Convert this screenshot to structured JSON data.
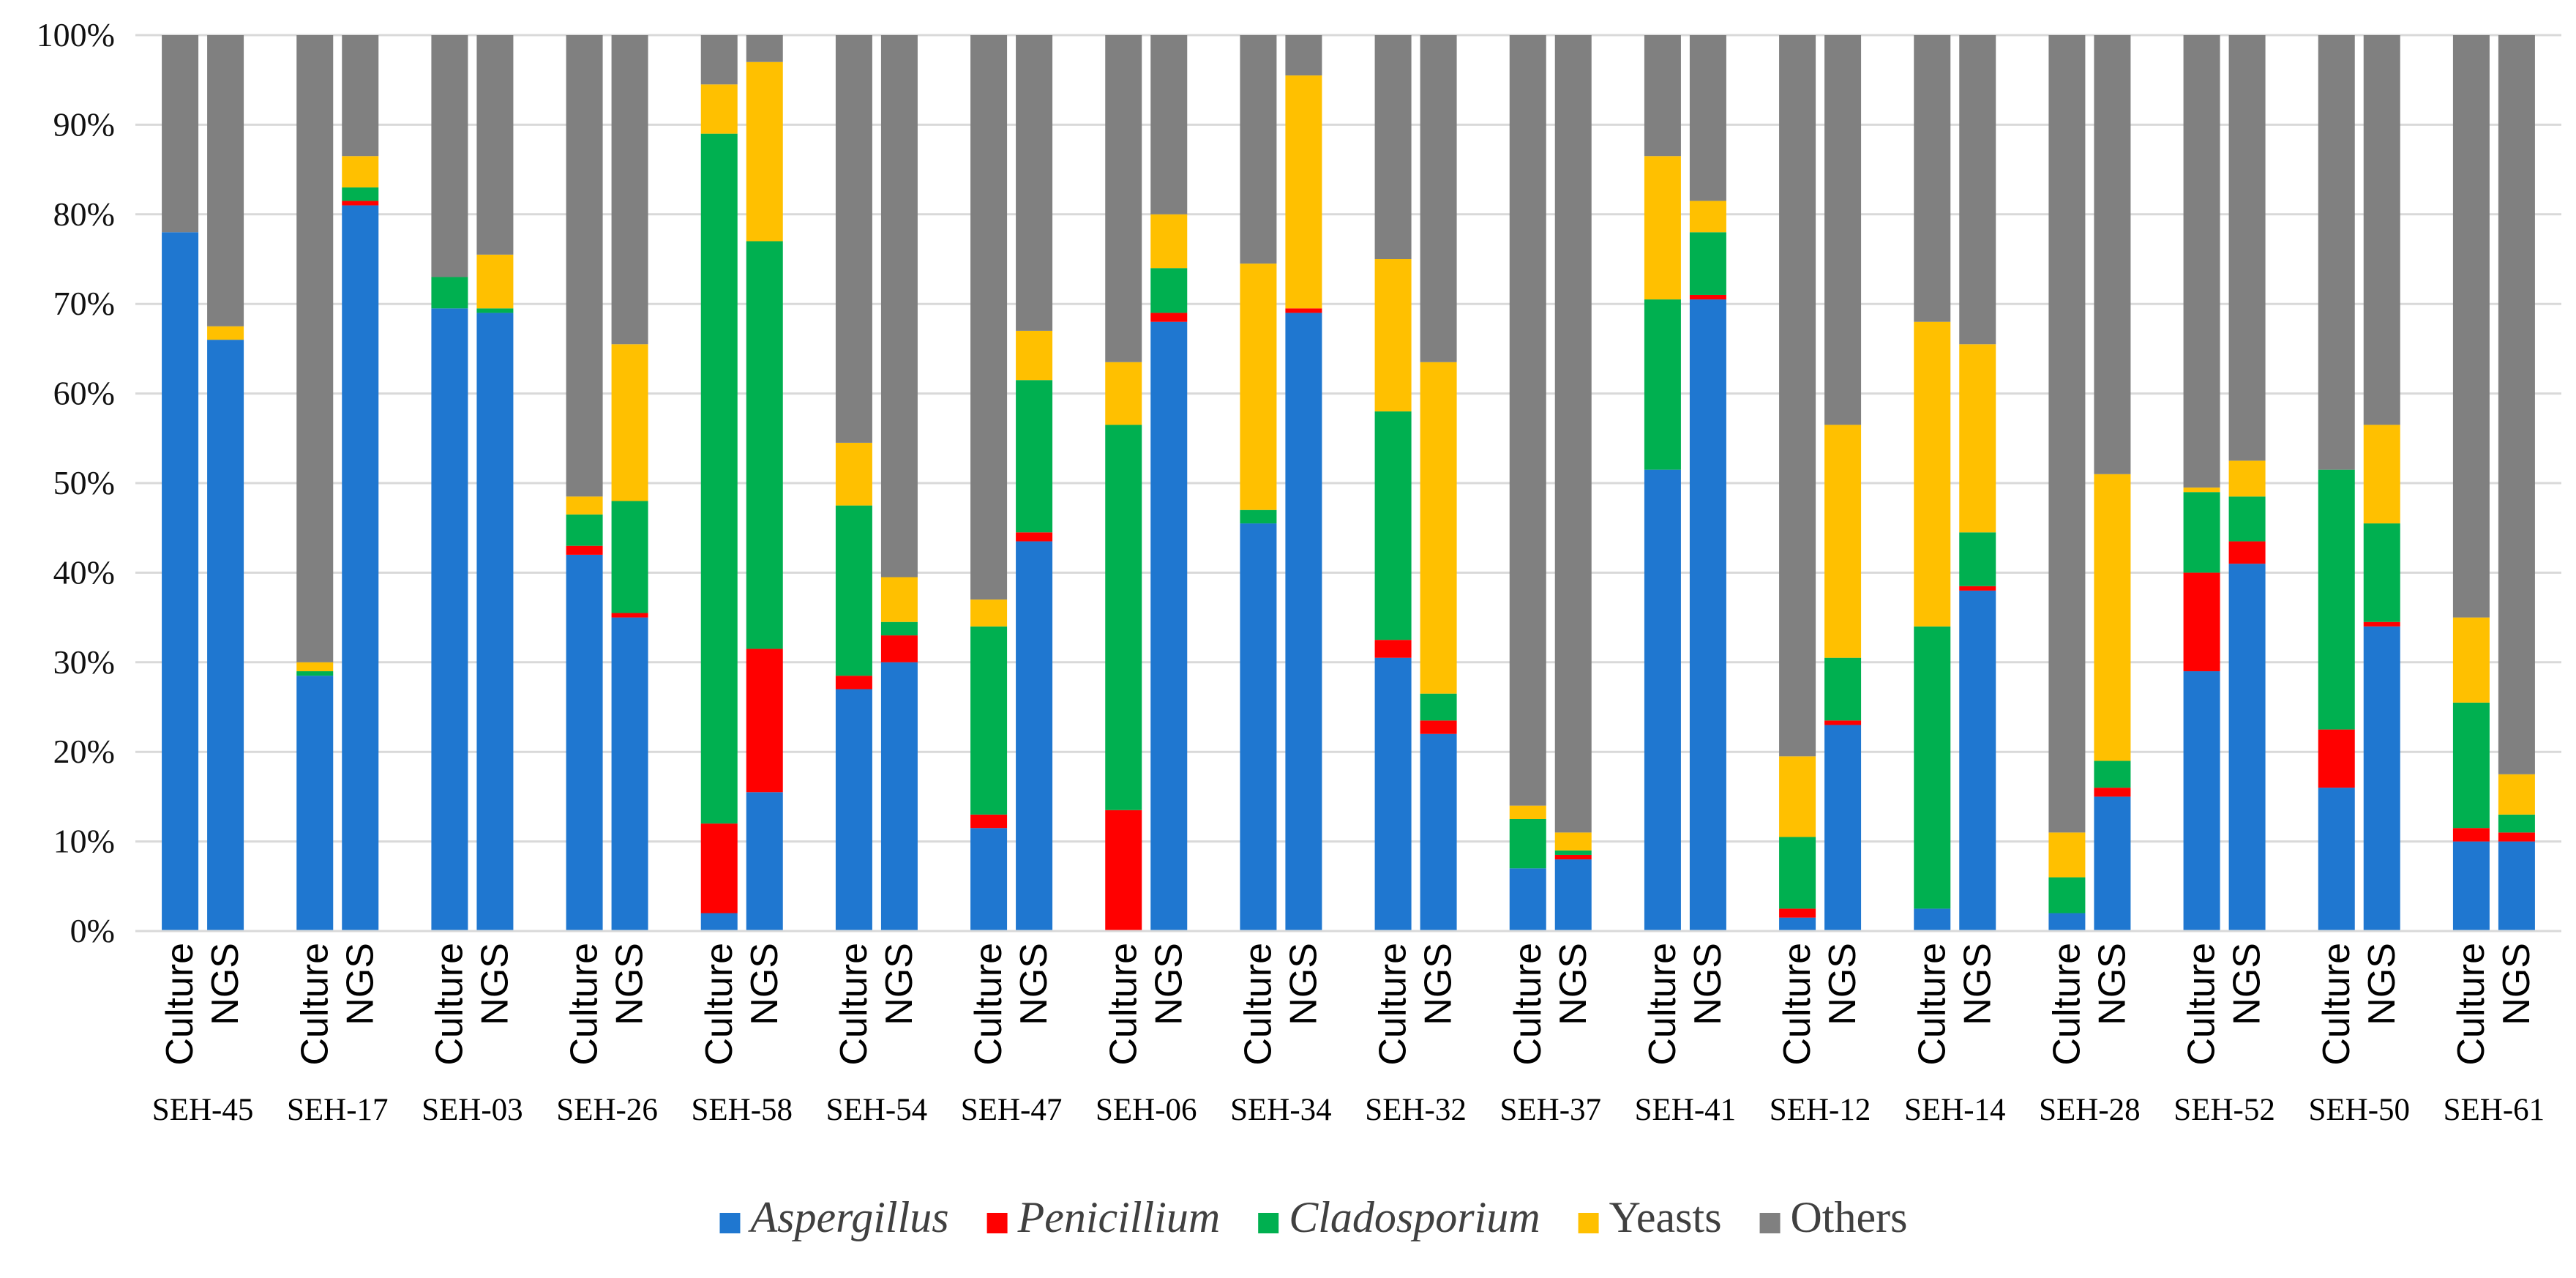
{
  "chart_data": {
    "type": "bar",
    "stacked": true,
    "percent": true,
    "title": "",
    "xlabel": "",
    "ylabel": "",
    "ylim": [
      0,
      100
    ],
    "y_ticks": [
      "0%",
      "10%",
      "20%",
      "30%",
      "40%",
      "50%",
      "60%",
      "70%",
      "80%",
      "90%",
      "100%"
    ],
    "grid": true,
    "legend_position": "bottom",
    "methods": [
      "Culture",
      "NGS"
    ],
    "samples": [
      "SEH-45",
      "SEH-17",
      "SEH-03",
      "SEH-26",
      "SEH-58",
      "SEH-54",
      "SEH-47",
      "SEH-06",
      "SEH-34",
      "SEH-32",
      "SEH-37",
      "SEH-41",
      "SEH-12",
      "SEH-14",
      "SEH-28",
      "SEH-52",
      "SEH-50",
      "SEH-61"
    ],
    "series": [
      {
        "name": "Aspergillus",
        "italic": true,
        "color": "#1F77D0",
        "values": [
          78,
          66,
          28.5,
          81,
          69.5,
          69,
          42,
          35,
          2,
          15.5,
          27,
          30,
          11.5,
          43.5,
          0,
          68,
          45.5,
          69,
          30.5,
          22,
          7,
          8,
          51.5,
          70.5,
          1.5,
          23,
          2.5,
          38,
          2,
          15,
          29,
          41,
          16,
          34,
          10,
          10
        ]
      },
      {
        "name": "Penicillium",
        "italic": true,
        "color": "#FF0000",
        "values": [
          0,
          0,
          0,
          0.5,
          0,
          0,
          1,
          0.5,
          10,
          16,
          1.5,
          3,
          1.5,
          1,
          13.5,
          1,
          0,
          0.5,
          2,
          1.5,
          0,
          0.5,
          0,
          0.5,
          1,
          0.5,
          0,
          0.5,
          0,
          1,
          11,
          2.5,
          6.5,
          0.5,
          1.5,
          1
        ]
      },
      {
        "name": "Cladosporium",
        "italic": true,
        "color": "#00B050",
        "values": [
          0,
          0,
          0.5,
          1.5,
          3.5,
          0.5,
          3.5,
          12.5,
          77,
          45.5,
          19,
          1.5,
          21,
          17,
          43,
          5,
          1.5,
          0,
          25.5,
          3,
          5.5,
          0.5,
          19,
          7,
          8,
          7,
          31.5,
          6,
          4,
          3,
          9,
          5,
          29,
          11,
          14,
          2
        ]
      },
      {
        "name": "Yeasts",
        "italic": false,
        "color": "#FFC000",
        "values": [
          0,
          1.5,
          1,
          3.5,
          0,
          6,
          2,
          17.5,
          5.5,
          20,
          7,
          5,
          3,
          5.5,
          7,
          6,
          27.5,
          26,
          17,
          37,
          1.5,
          2,
          16,
          3.5,
          9,
          26,
          34,
          21,
          5,
          32,
          0.5,
          4,
          0,
          11,
          9.5,
          4.5
        ]
      },
      {
        "name": "Others",
        "italic": false,
        "color": "#808080",
        "values": [
          22,
          32.5,
          70,
          13.5,
          27,
          24.5,
          51.5,
          34.5,
          5.5,
          3,
          45.5,
          60.5,
          63,
          33,
          36.5,
          20,
          25.5,
          4.5,
          25,
          36.5,
          86,
          89,
          13.5,
          18.5,
          80.5,
          43.5,
          32,
          34.5,
          89,
          49,
          50.5,
          47.5,
          48.5,
          43.5,
          65,
          82.5
        ]
      }
    ]
  }
}
